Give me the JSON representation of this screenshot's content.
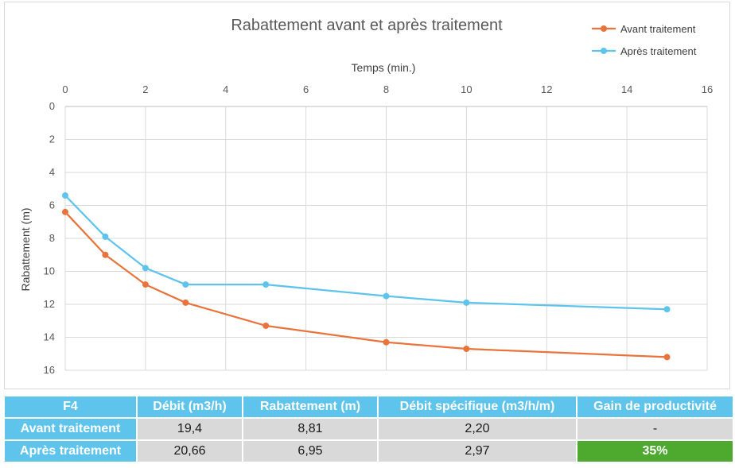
{
  "chart_data": {
    "type": "line",
    "title": "Rabattement avant et après traitement",
    "xlabel": "Temps (min.)",
    "ylabel": "Rabattement (m)",
    "xlim": [
      0,
      16
    ],
    "ylim": [
      0,
      16
    ],
    "x_ticks": [
      0,
      2,
      4,
      6,
      8,
      10,
      12,
      14,
      16
    ],
    "y_ticks": [
      0,
      2,
      4,
      6,
      8,
      10,
      12,
      14,
      16
    ],
    "y_inverted": true,
    "x_axis_position": "top",
    "grid": true,
    "legend_position": "top-right",
    "series": [
      {
        "name": "Avant traitement",
        "color": "#e8743b",
        "x": [
          0,
          1,
          2,
          3,
          5,
          8,
          10,
          15
        ],
        "y": [
          6.4,
          9.0,
          10.8,
          11.9,
          13.3,
          14.3,
          14.7,
          15.2
        ]
      },
      {
        "name": "Après traitement",
        "color": "#5ec4ec",
        "x": [
          0,
          1,
          2,
          3,
          5,
          8,
          10,
          15
        ],
        "y": [
          5.4,
          7.9,
          9.8,
          10.8,
          10.8,
          11.5,
          11.9,
          12.3
        ]
      }
    ]
  },
  "table": {
    "headers": [
      "F4",
      "Débit (m3/h)",
      "Rabattement (m)",
      "Débit spécifique (m3/h/m)",
      "Gain de productivité"
    ],
    "rows": [
      [
        "Avant traitement",
        "19,4",
        "8,81",
        "2,20",
        "-"
      ],
      [
        "Après traitement",
        "20,66",
        "6,95",
        "2,97",
        "35%"
      ]
    ],
    "highlight_color": "#4daa2f",
    "header_color": "#5ec4ec"
  }
}
